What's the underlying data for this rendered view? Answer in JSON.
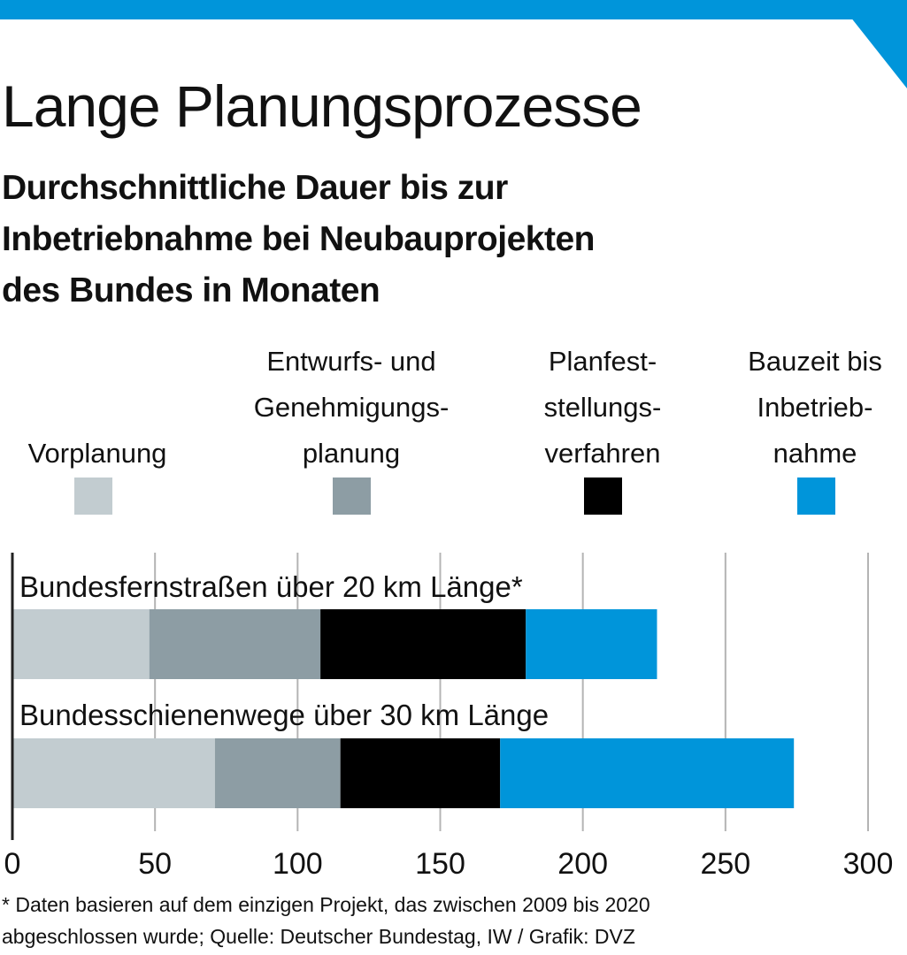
{
  "colors": {
    "accent": "#0095da",
    "vorplanung": "#c2ccd0",
    "entwurf": "#8d9da4",
    "planfeststellung": "#000000",
    "bauzeit": "#0095da",
    "grid": "#b4b4b4",
    "axis": "#222222"
  },
  "chart_data": {
    "type": "bar",
    "orientation": "horizontal",
    "stacked": true,
    "title": "Lange Planungsprozesse",
    "subtitle_lines": [
      "Durchschnittliche Dauer bis zur",
      "Inbetriebnahme bei Neubauprojekten",
      "des Bundes in Monaten"
    ],
    "categories": [
      "Bundesfernstraßen über 20 km Länge*",
      "Bundesschienenwege über 30 km Länge"
    ],
    "series": [
      {
        "name": "Vorplanung",
        "name_lines": [
          "Vorplanung"
        ],
        "color": "#c2ccd0",
        "values": [
          48,
          71
        ]
      },
      {
        "name": "Entwurfs- und Genehmigungsplanung",
        "name_lines": [
          "Entwurfs- und",
          "Genehmigungs-",
          "planung"
        ],
        "color": "#8d9da4",
        "values": [
          60,
          44
        ]
      },
      {
        "name": "Planfeststellungsverfahren",
        "name_lines": [
          "Planfest-",
          "stellungs-",
          "verfahren"
        ],
        "color": "#000000",
        "values": [
          72,
          56
        ]
      },
      {
        "name": "Bauzeit bis Inbetriebnahme",
        "name_lines": [
          "Bauzeit bis",
          "Inbetrieb-",
          "nahme"
        ],
        "color": "#0095da",
        "values": [
          46,
          103
        ]
      }
    ],
    "xlim": [
      0,
      300
    ],
    "xticks": [
      "0",
      "50",
      "100",
      "150",
      "200",
      "250",
      "300"
    ],
    "grid": true,
    "legend_position": "top"
  },
  "footnote_lines": [
    "* Daten basieren auf dem einzigen Projekt, das zwischen 2009 bis 2020",
    "abgeschlossen wurde; Quelle: Deutscher Bundestag, IW / Grafik: DVZ"
  ]
}
